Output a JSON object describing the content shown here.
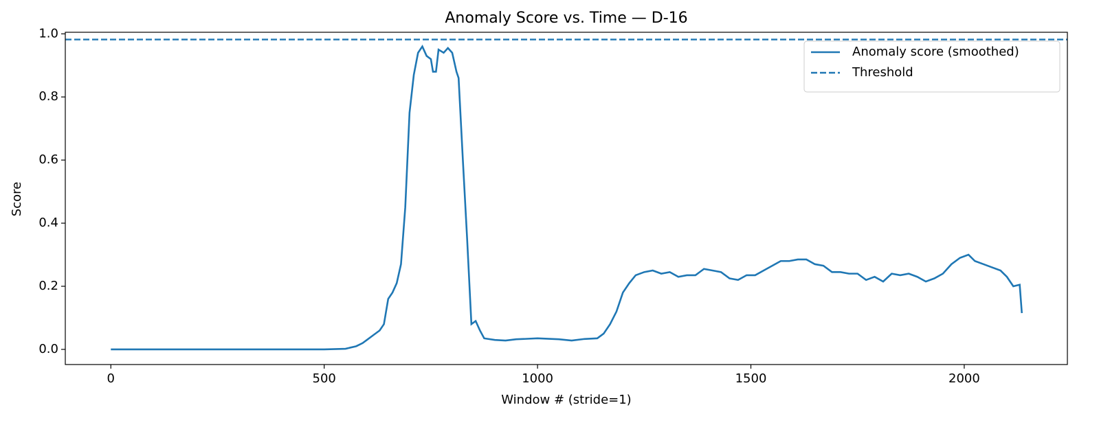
{
  "chart_data": {
    "type": "line",
    "title": "Anomaly Score vs. Time — D-16",
    "xlabel": "Window # (stride=1)",
    "ylabel": "Score",
    "x": [
      0,
      500,
      550,
      575,
      590,
      600,
      615,
      630,
      640,
      650,
      660,
      670,
      680,
      690,
      700,
      710,
      720,
      730,
      740,
      750,
      755,
      762,
      768,
      780,
      790,
      800,
      810,
      815,
      825,
      835,
      845,
      855,
      865,
      875,
      900,
      925,
      950,
      1000,
      1050,
      1080,
      1110,
      1140,
      1155,
      1170,
      1185,
      1200,
      1215,
      1230,
      1250,
      1270,
      1290,
      1310,
      1330,
      1350,
      1370,
      1390,
      1410,
      1430,
      1450,
      1470,
      1490,
      1510,
      1530,
      1550,
      1570,
      1590,
      1610,
      1630,
      1650,
      1670,
      1690,
      1710,
      1730,
      1750,
      1770,
      1790,
      1810,
      1830,
      1850,
      1870,
      1890,
      1910,
      1930,
      1950,
      1970,
      1990,
      2010,
      2025,
      2045,
      2065,
      2085,
      2100,
      2115,
      2130,
      2135
    ],
    "series": [
      {
        "name": "Anomaly score (smoothed)",
        "color": "#1f77b4",
        "values": [
          0,
          0,
          0.002,
          0.01,
          0.02,
          0.03,
          0.045,
          0.06,
          0.08,
          0.16,
          0.18,
          0.21,
          0.27,
          0.45,
          0.75,
          0.87,
          0.94,
          0.96,
          0.93,
          0.92,
          0.88,
          0.88,
          0.95,
          0.94,
          0.955,
          0.94,
          0.88,
          0.86,
          0.6,
          0.35,
          0.08,
          0.09,
          0.06,
          0.035,
          0.03,
          0.028,
          0.032,
          0.035,
          0.032,
          0.028,
          0.033,
          0.035,
          0.05,
          0.08,
          0.12,
          0.18,
          0.21,
          0.235,
          0.245,
          0.25,
          0.24,
          0.245,
          0.23,
          0.235,
          0.235,
          0.255,
          0.25,
          0.245,
          0.225,
          0.22,
          0.235,
          0.235,
          0.25,
          0.265,
          0.28,
          0.28,
          0.285,
          0.285,
          0.27,
          0.265,
          0.245,
          0.245,
          0.24,
          0.24,
          0.22,
          0.23,
          0.215,
          0.24,
          0.235,
          0.24,
          0.23,
          0.215,
          0.225,
          0.24,
          0.27,
          0.29,
          0.3,
          0.28,
          0.27,
          0.26,
          0.25,
          0.23,
          0.2,
          0.205,
          0.115
        ]
      }
    ],
    "threshold": {
      "name": "Threshold",
      "value": 0.982,
      "color": "#1f77b4"
    },
    "xlim": [
      -106.75,
      2241.75
    ],
    "ylim": [
      -0.048,
      1.005
    ],
    "xticks": [
      0,
      500,
      1000,
      1500,
      2000
    ],
    "yticks": [
      {
        "value": 0,
        "label": "0.0"
      },
      0.2,
      0.4,
      0.6,
      0.8,
      {
        "value": 1,
        "label": "1.0"
      }
    ],
    "legend": "upper right"
  }
}
